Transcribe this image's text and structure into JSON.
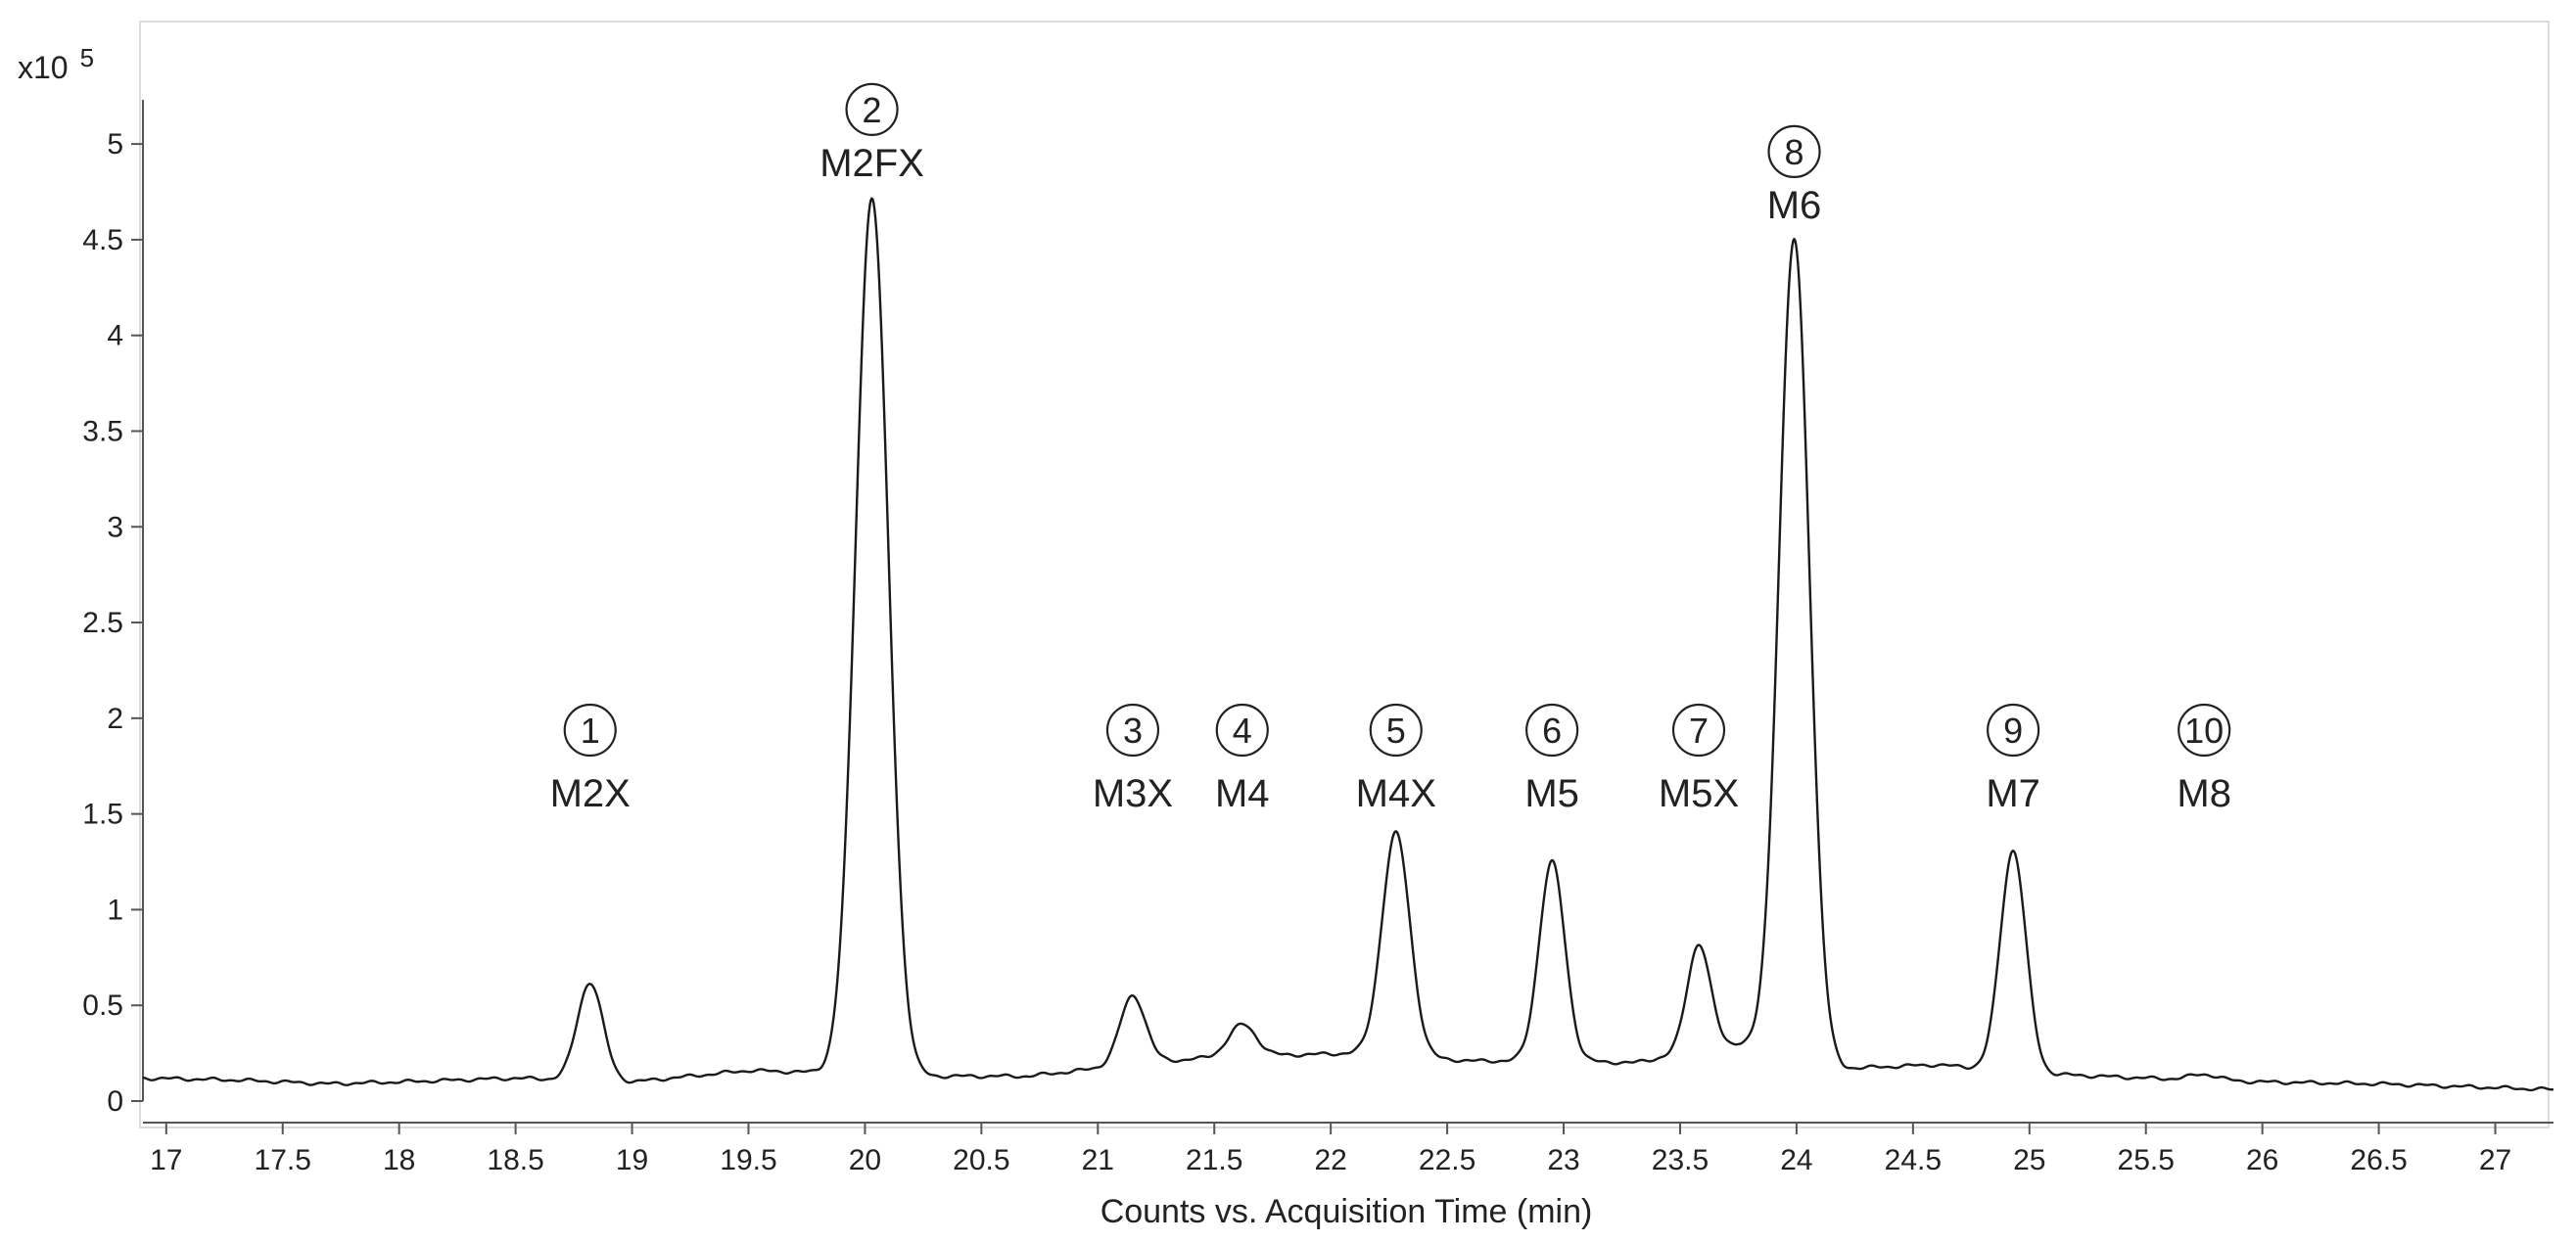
{
  "chart_data": {
    "type": "line",
    "xlabel": "Counts vs. Acquisition Time (min)",
    "y_multiplier": "x10",
    "y_multiplier_exponent": "5",
    "xlim": [
      16.9,
      27.25
    ],
    "ylim": [
      0,
      5.2
    ],
    "x_ticks": [
      "17",
      "17.5",
      "18",
      "18.5",
      "19",
      "19.5",
      "20",
      "20.5",
      "21",
      "21.5",
      "22",
      "22.5",
      "23",
      "23.5",
      "24",
      "24.5",
      "25",
      "25.5",
      "26",
      "26.5",
      "27"
    ],
    "y_ticks": [
      "0",
      "0.5",
      "1",
      "1.5",
      "2",
      "2.5",
      "3",
      "3.5",
      "4",
      "4.5",
      "5"
    ],
    "grid": false,
    "line_color": "#1a1a1a",
    "baseline": [
      [
        16.9,
        0.12
      ],
      [
        17.3,
        0.11
      ],
      [
        17.7,
        0.09
      ],
      [
        18.0,
        0.1
      ],
      [
        18.5,
        0.12
      ],
      [
        19.0,
        0.1
      ],
      [
        19.5,
        0.16
      ],
      [
        20.3,
        0.13
      ],
      [
        20.7,
        0.13
      ],
      [
        21.0,
        0.17
      ],
      [
        21.4,
        0.22
      ],
      [
        21.8,
        0.24
      ],
      [
        22.1,
        0.25
      ],
      [
        22.6,
        0.21
      ],
      [
        23.0,
        0.21
      ],
      [
        23.3,
        0.2
      ],
      [
        23.75,
        0.3
      ],
      [
        24.2,
        0.17
      ],
      [
        24.6,
        0.19
      ],
      [
        25.1,
        0.14
      ],
      [
        25.5,
        0.12
      ],
      [
        26.0,
        0.1
      ],
      [
        26.5,
        0.09
      ],
      [
        27.0,
        0.07
      ],
      [
        27.25,
        0.06
      ]
    ],
    "peaks": [
      {
        "number": "1",
        "label": "M2X",
        "x": 18.82,
        "y": 0.62
      },
      {
        "number": "2",
        "label": "M2FX",
        "x": 20.03,
        "y": 4.72
      },
      {
        "number": "3",
        "label": "M3X",
        "x": 21.15,
        "y": 0.55
      },
      {
        "number": "4",
        "label": "M4",
        "x": 21.62,
        "y": 0.4
      },
      {
        "number": "5",
        "label": "M4X",
        "x": 22.28,
        "y": 1.4
      },
      {
        "number": "6",
        "label": "M5",
        "x": 22.95,
        "y": 1.25
      },
      {
        "number": "7",
        "label": "M5X",
        "x": 23.58,
        "y": 0.82
      },
      {
        "number": "8",
        "label": "M6",
        "x": 23.99,
        "y": 4.5
      },
      {
        "number": "9",
        "label": "M7",
        "x": 24.93,
        "y": 1.31
      },
      {
        "number": "10",
        "label": "M8",
        "x": 25.75,
        "y": 0.14
      }
    ]
  }
}
